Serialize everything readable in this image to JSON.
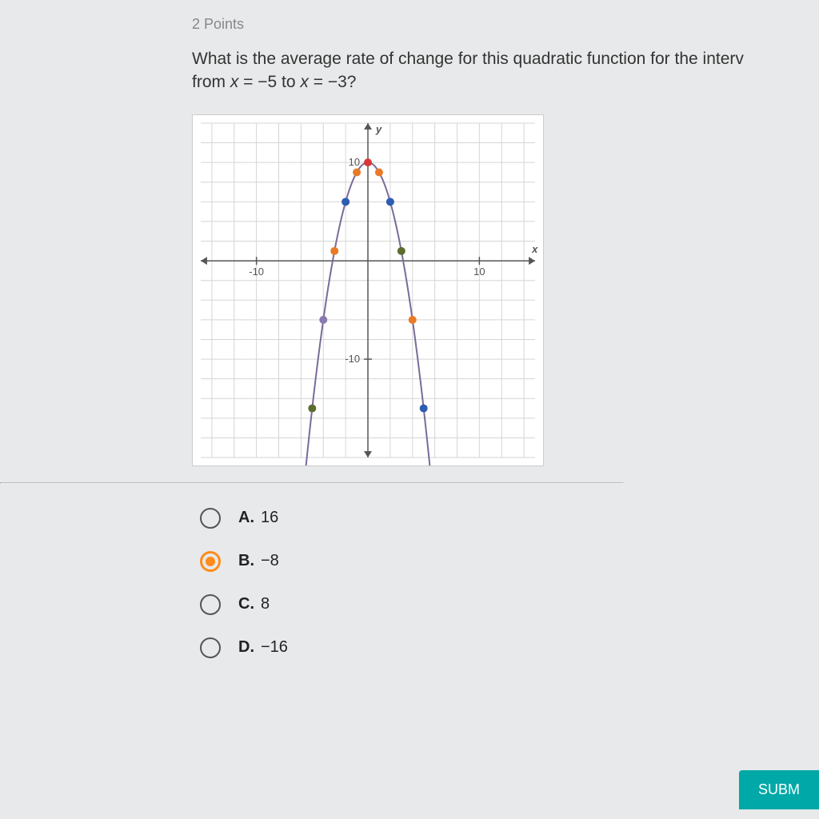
{
  "points": "2 Points",
  "question_line1": "What is the average rate of change for this quadratic function for the interv",
  "question_line2": "from x = −5 to x = −3?",
  "chart": {
    "type": "scatter_curve",
    "xlim": [
      -15,
      15
    ],
    "ylim": [
      -20,
      14
    ],
    "x_ticks": [
      -10,
      10
    ],
    "y_ticks": [
      10,
      -10
    ],
    "x_label": "x",
    "y_label": "y",
    "grid_color": "#d5d5d5",
    "axis_color": "#555",
    "background_color": "#ffffff",
    "curve_color": "#7a6a9a",
    "curve_width": 2,
    "vertex": [
      0,
      10
    ],
    "curve_a": -1,
    "points": [
      {
        "x": 0,
        "y": 10,
        "color": "#d93838"
      },
      {
        "x": -1,
        "y": 9,
        "color": "#e87a28"
      },
      {
        "x": 1,
        "y": 9,
        "color": "#e87a28"
      },
      {
        "x": -2,
        "y": 6,
        "color": "#2d5db0"
      },
      {
        "x": 2,
        "y": 6,
        "color": "#2d5db0"
      },
      {
        "x": -3,
        "y": 1,
        "color": "#e87a28"
      },
      {
        "x": 3,
        "y": 1,
        "color": "#5b6e2e"
      },
      {
        "x": -4,
        "y": -6,
        "color": "#8a7ab0"
      },
      {
        "x": 4,
        "y": -6,
        "color": "#e87a28"
      },
      {
        "x": -5,
        "y": -15,
        "color": "#5b6e2e"
      },
      {
        "x": 5,
        "y": -15,
        "color": "#2d5db0"
      }
    ],
    "label_fontsize": 13,
    "point_radius": 5
  },
  "options": [
    {
      "letter": "A.",
      "text": "16",
      "selected": false
    },
    {
      "letter": "B.",
      "text": "−8",
      "selected": true
    },
    {
      "letter": "C.",
      "text": "8",
      "selected": false
    },
    {
      "letter": "D.",
      "text": "−16",
      "selected": false
    }
  ],
  "submit_label": "SUBM"
}
